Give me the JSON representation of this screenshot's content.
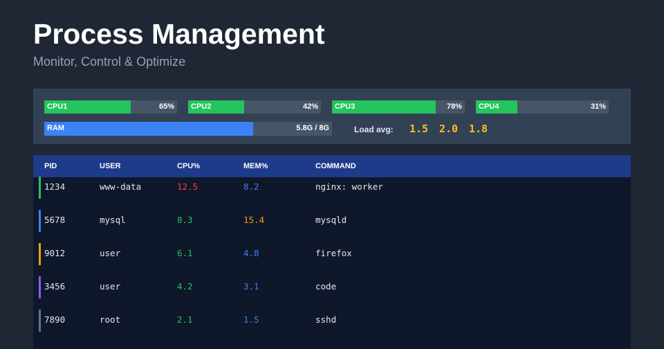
{
  "header": {
    "title": "Process Management",
    "subtitle": "Monitor, Control & Optimize"
  },
  "stats": {
    "cpus": [
      {
        "label": "CPU1",
        "value": 65,
        "value_label": "65%"
      },
      {
        "label": "CPU2",
        "value": 42,
        "value_label": "42%"
      },
      {
        "label": "CPU3",
        "value": 78,
        "value_label": "78%"
      },
      {
        "label": "CPU4",
        "value": 31,
        "value_label": "31%"
      }
    ],
    "cpu_color": "#22c55e",
    "ram": {
      "label": "RAM",
      "used": 5.8,
      "total": 8,
      "value_label": "5.8G / 8G",
      "color": "#3b82f6"
    },
    "load": {
      "label": "Load avg:",
      "values": [
        "1.5",
        "2.0",
        "1.8"
      ]
    }
  },
  "table": {
    "headers": [
      "PID",
      "USER",
      "CPU%",
      "MEM%",
      "COMMAND"
    ],
    "rows": [
      {
        "cells": [
          "1234",
          "www-data",
          "12.5",
          "8.2",
          "nginx: worker"
        ],
        "accent": "#22c55e",
        "cpu_color": "#ef4444",
        "mem_color": "#3b82f6"
      },
      {
        "cells": [
          "5678",
          "mysql",
          "8.3",
          "15.4",
          "mysqld"
        ],
        "accent": "#3b82f6",
        "cpu_color": "#22c55e",
        "mem_color": "#f59e0b"
      },
      {
        "cells": [
          "9012",
          "user",
          "6.1",
          "4.8",
          "firefox"
        ],
        "accent": "#f59e0b",
        "cpu_color": "#22c55e",
        "mem_color": "#3b82f6"
      },
      {
        "cells": [
          "3456",
          "user",
          "4.2",
          "3.1",
          "code"
        ],
        "accent": "#8b5cf6",
        "cpu_color": "#22c55e",
        "mem_color": "#3b82f6"
      },
      {
        "cells": [
          "7890",
          "root",
          "2.1",
          "1.5",
          "sshd"
        ],
        "accent": "#64748b",
        "cpu_color": "#22c55e",
        "mem_color": "#3b82f6"
      }
    ]
  }
}
